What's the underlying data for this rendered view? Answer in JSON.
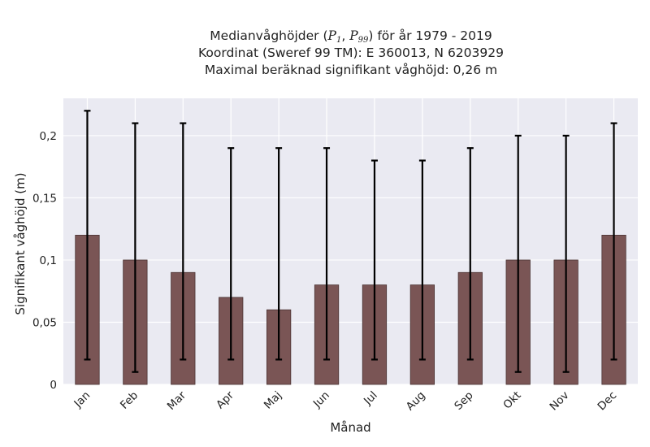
{
  "chart_data": {
    "type": "bar",
    "title_lines": {
      "line1_prefix": "Medianvåghöjder (",
      "p1_base": "P",
      "p1_sub": "1",
      "comma": ", ",
      "p99_base": "P",
      "p99_sub": "99",
      "line1_suffix": ") för år 1979 - 2019",
      "line2": "Koordinat (Sweref 99 TM): E 360013, N 6203929",
      "line3": "Maximal beräknad signifikant våghöjd: 0,26 m"
    },
    "xlabel": "Månad",
    "ylabel": "Signifikant våghöjd (m)",
    "ylim": [
      0,
      0.23
    ],
    "yticks": [
      0,
      0.05,
      0.1,
      0.15,
      0.2
    ],
    "ytick_labels": [
      "0",
      "0,05",
      "0,1",
      "0,15",
      "0,2"
    ],
    "grid": true,
    "categories": [
      "Jan",
      "Feb",
      "Mar",
      "Apr",
      "Maj",
      "Jun",
      "Jul",
      "Aug",
      "Sep",
      "Okt",
      "Nov",
      "Dec"
    ],
    "values": [
      0.12,
      0.1,
      0.09,
      0.07,
      0.06,
      0.08,
      0.08,
      0.08,
      0.09,
      0.1,
      0.1,
      0.12
    ],
    "p1": [
      0.02,
      0.01,
      0.02,
      0.02,
      0.02,
      0.02,
      0.02,
      0.02,
      0.02,
      0.01,
      0.01,
      0.02
    ],
    "p99": [
      0.22,
      0.21,
      0.21,
      0.19,
      0.19,
      0.19,
      0.18,
      0.18,
      0.19,
      0.2,
      0.2,
      0.21
    ],
    "colors": {
      "bar": "#7a5555",
      "bar_edge": "#4a3434",
      "error": "#000000",
      "plot_bg": "#eaeaf2",
      "grid": "#ffffff"
    }
  }
}
